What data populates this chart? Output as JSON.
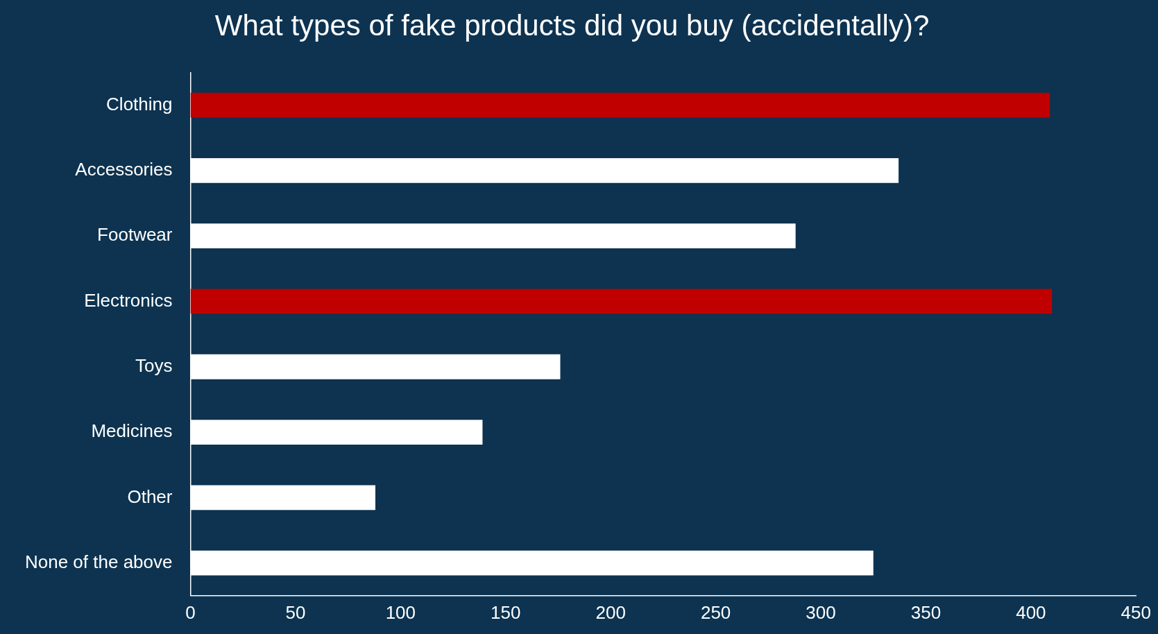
{
  "chart_data": {
    "type": "bar",
    "orientation": "horizontal",
    "title": "What types of fake products did you buy (accidentally)?",
    "categories": [
      "Clothing",
      "Accessories",
      "Footwear",
      "Electronics",
      "Toys",
      "Medicines",
      "Other",
      "None of the above"
    ],
    "values": [
      409,
      337,
      288,
      410,
      176,
      139,
      88,
      325
    ],
    "colors": [
      "#c00000",
      "#ffffff",
      "#ffffff",
      "#c00000",
      "#ffffff",
      "#ffffff",
      "#ffffff",
      "#ffffff"
    ],
    "xlim": [
      0,
      450
    ],
    "xticks": [
      0,
      50,
      100,
      150,
      200,
      250,
      300,
      350,
      400,
      450
    ],
    "grid": false,
    "legend": false
  }
}
